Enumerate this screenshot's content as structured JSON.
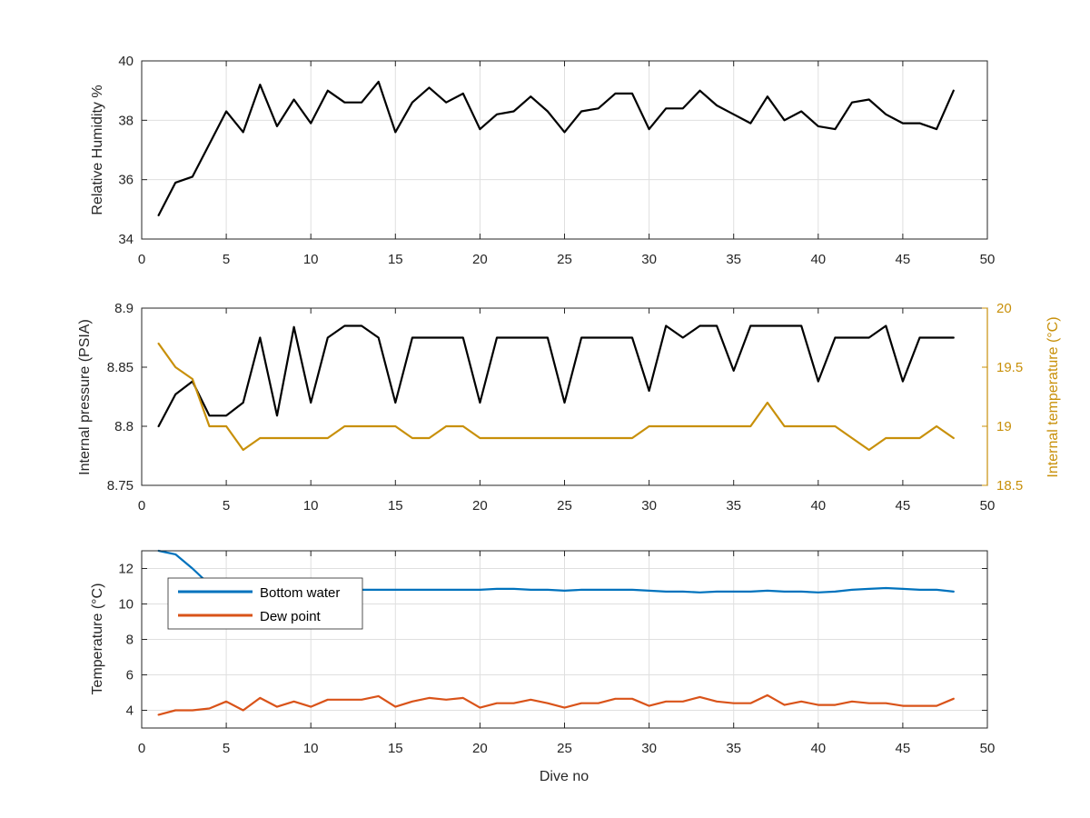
{
  "colors": {
    "black_series": "#000000",
    "internal_temp": "#c8900a",
    "bottom_water": "#0072bd",
    "dew_point": "#d95319",
    "grid": "#dfdfdf",
    "axis": "#262626"
  },
  "chart_data": [
    {
      "type": "line",
      "xlabel": "",
      "ylabel": "Relative Humidity %",
      "xlim": [
        0,
        50
      ],
      "ylim": [
        34,
        40
      ],
      "xticks": [
        0,
        5,
        10,
        15,
        20,
        25,
        30,
        35,
        40,
        45,
        50
      ],
      "yticks": [
        34,
        36,
        38,
        40
      ],
      "grid": true,
      "series": [
        {
          "name": "",
          "color": "#000000",
          "axis": "left",
          "x": [
            1,
            2,
            3,
            4,
            5,
            6,
            7,
            8,
            9,
            10,
            11,
            12,
            13,
            14,
            15,
            16,
            17,
            18,
            19,
            20,
            21,
            22,
            23,
            24,
            25,
            26,
            27,
            28,
            29,
            30,
            31,
            32,
            33,
            34,
            35,
            36,
            37,
            38,
            39,
            40,
            41,
            42,
            43,
            44,
            45,
            46,
            47,
            48
          ],
          "values": [
            34.8,
            35.9,
            36.1,
            37.2,
            38.3,
            37.6,
            39.2,
            37.8,
            38.7,
            37.9,
            39.0,
            38.6,
            38.6,
            39.3,
            37.6,
            38.6,
            39.1,
            38.6,
            38.9,
            37.7,
            38.2,
            38.3,
            38.8,
            38.3,
            37.6,
            38.3,
            38.4,
            38.9,
            38.9,
            37.7,
            38.4,
            38.4,
            39.0,
            38.5,
            38.2,
            37.9,
            38.8,
            38.0,
            38.3,
            37.8,
            37.7,
            38.6,
            38.7,
            38.2,
            37.9,
            37.9,
            37.7,
            39.0
          ]
        }
      ]
    },
    {
      "type": "line",
      "xlabel": "",
      "ylabel": "Internal pressure (PSIA)",
      "ylabel_right": "Internal temperature (°C)",
      "xlim": [
        0,
        50
      ],
      "ylim": [
        8.75,
        8.9
      ],
      "ylim_right": [
        18.5,
        20
      ],
      "xticks": [
        0,
        5,
        10,
        15,
        20,
        25,
        30,
        35,
        40,
        45,
        50
      ],
      "yticks": [
        "8.75",
        "8.8",
        "8.85",
        "8.9"
      ],
      "yticks_right": [
        "18.5",
        "19",
        "19.5",
        "20"
      ],
      "grid": false,
      "series": [
        {
          "name": "",
          "color": "#000000",
          "axis": "left",
          "x": [
            1,
            2,
            3,
            4,
            5,
            6,
            7,
            8,
            9,
            10,
            11,
            12,
            13,
            14,
            15,
            16,
            17,
            18,
            19,
            20,
            21,
            22,
            23,
            24,
            25,
            26,
            27,
            28,
            29,
            30,
            31,
            32,
            33,
            34,
            35,
            36,
            37,
            38,
            39,
            40,
            41,
            42,
            43,
            44,
            45,
            46,
            47,
            48
          ],
          "values": [
            8.8,
            8.827,
            8.838,
            8.809,
            8.809,
            8.82,
            8.875,
            8.809,
            8.884,
            8.82,
            8.875,
            8.885,
            8.885,
            8.875,
            8.82,
            8.875,
            8.875,
            8.875,
            8.875,
            8.82,
            8.875,
            8.875,
            8.875,
            8.875,
            8.82,
            8.875,
            8.875,
            8.875,
            8.875,
            8.83,
            8.885,
            8.875,
            8.885,
            8.885,
            8.847,
            8.885,
            8.885,
            8.885,
            8.885,
            8.838,
            8.875,
            8.875,
            8.875,
            8.885,
            8.838,
            8.875,
            8.875,
            8.875
          ]
        },
        {
          "name": "",
          "color": "#c8900a",
          "axis": "right",
          "x": [
            1,
            2,
            3,
            4,
            5,
            6,
            7,
            8,
            9,
            10,
            11,
            12,
            13,
            14,
            15,
            16,
            17,
            18,
            19,
            20,
            21,
            22,
            23,
            24,
            25,
            26,
            27,
            28,
            29,
            30,
            31,
            32,
            33,
            34,
            35,
            36,
            37,
            38,
            39,
            40,
            41,
            42,
            43,
            44,
            45,
            46,
            47,
            48
          ],
          "values": [
            19.7,
            19.5,
            19.4,
            19.0,
            19.0,
            18.8,
            18.9,
            18.9,
            18.9,
            18.9,
            18.9,
            19.0,
            19.0,
            19.0,
            19.0,
            18.9,
            18.9,
            19.0,
            19.0,
            18.9,
            18.9,
            18.9,
            18.9,
            18.9,
            18.9,
            18.9,
            18.9,
            18.9,
            18.9,
            19.0,
            19.0,
            19.0,
            19.0,
            19.0,
            19.0,
            19.0,
            19.2,
            19.0,
            19.0,
            19.0,
            19.0,
            18.9,
            18.8,
            18.9,
            18.9,
            18.9,
            19.0,
            18.9
          ]
        }
      ]
    },
    {
      "type": "line",
      "xlabel": "Dive no",
      "ylabel": "Temperature (°C)",
      "xlim": [
        0,
        50
      ],
      "ylim": [
        3,
        13
      ],
      "xticks": [
        0,
        5,
        10,
        15,
        20,
        25,
        30,
        35,
        40,
        45,
        50
      ],
      "yticks": [
        4,
        6,
        8,
        10,
        12
      ],
      "grid": true,
      "legend": "top-left",
      "series": [
        {
          "name": "Bottom water",
          "color": "#0072bd",
          "axis": "left",
          "x": [
            1,
            2,
            3,
            4,
            5,
            6,
            7,
            8,
            9,
            10,
            11,
            12,
            13,
            14,
            15,
            16,
            17,
            18,
            19,
            20,
            21,
            22,
            23,
            24,
            25,
            26,
            27,
            28,
            29,
            30,
            31,
            32,
            33,
            34,
            35,
            36,
            37,
            38,
            39,
            40,
            41,
            42,
            43,
            44,
            45,
            46,
            47,
            48
          ],
          "values": [
            13.0,
            12.8,
            12.0,
            11.1,
            10.9,
            10.8,
            10.8,
            10.8,
            10.8,
            10.8,
            10.8,
            10.8,
            10.8,
            10.8,
            10.8,
            10.8,
            10.8,
            10.8,
            10.8,
            10.8,
            10.85,
            10.85,
            10.8,
            10.8,
            10.75,
            10.8,
            10.8,
            10.8,
            10.8,
            10.75,
            10.7,
            10.7,
            10.65,
            10.7,
            10.7,
            10.7,
            10.75,
            10.7,
            10.7,
            10.65,
            10.7,
            10.8,
            10.85,
            10.9,
            10.85,
            10.8,
            10.8,
            10.7
          ]
        },
        {
          "name": "Dew point",
          "color": "#d95319",
          "axis": "left",
          "x": [
            1,
            2,
            3,
            4,
            5,
            6,
            7,
            8,
            9,
            10,
            11,
            12,
            13,
            14,
            15,
            16,
            17,
            18,
            19,
            20,
            21,
            22,
            23,
            24,
            25,
            26,
            27,
            28,
            29,
            30,
            31,
            32,
            33,
            34,
            35,
            36,
            37,
            38,
            39,
            40,
            41,
            42,
            43,
            44,
            45,
            46,
            47,
            48
          ],
          "values": [
            3.75,
            4.0,
            4.0,
            4.1,
            4.5,
            4.0,
            4.7,
            4.2,
            4.5,
            4.2,
            4.6,
            4.6,
            4.6,
            4.8,
            4.2,
            4.5,
            4.7,
            4.6,
            4.7,
            4.15,
            4.4,
            4.4,
            4.6,
            4.4,
            4.15,
            4.4,
            4.4,
            4.65,
            4.65,
            4.25,
            4.5,
            4.5,
            4.75,
            4.5,
            4.4,
            4.4,
            4.85,
            4.3,
            4.5,
            4.3,
            4.3,
            4.5,
            4.4,
            4.4,
            4.25,
            4.25,
            4.25,
            4.65
          ]
        }
      ]
    }
  ]
}
